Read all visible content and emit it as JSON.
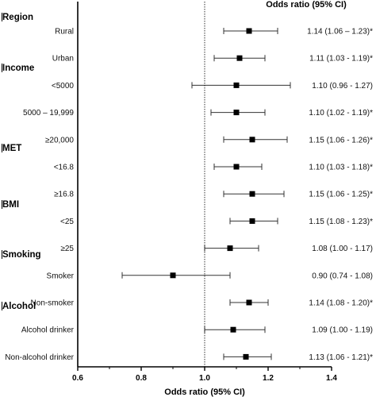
{
  "chart_data": {
    "type": "forest",
    "column_header": "Odds ratio (95% CI)",
    "xlabel": "Odds ratio (95% CI)",
    "xlim": [
      0.6,
      1.4
    ],
    "x_ticks": [
      "0.6",
      "0.8",
      "1.0",
      "1.2",
      "1.4"
    ],
    "reference_line": 1.0,
    "groups": [
      {
        "label": "Region",
        "rows": [
          {
            "label": "Rural",
            "or": 1.14,
            "lo": 1.06,
            "hi": 1.23,
            "text": "1.14 (1.06 – 1.23)*"
          },
          {
            "label": "Urban",
            "or": 1.11,
            "lo": 1.03,
            "hi": 1.19,
            "text": "1.11 (1.03 - 1.19)*"
          }
        ]
      },
      {
        "label": "Income",
        "rows": [
          {
            "label": "<5000",
            "or": 1.1,
            "lo": 0.96,
            "hi": 1.27,
            "text": "1.10 (0.96 - 1.27)"
          },
          {
            "label": "5000 – 19,999",
            "or": 1.1,
            "lo": 1.02,
            "hi": 1.19,
            "text": "1.10 (1.02 - 1.19)*"
          },
          {
            "label": "≥20,000",
            "or": 1.15,
            "lo": 1.06,
            "hi": 1.26,
            "text": "1.15 (1.06 - 1.26)*"
          }
        ]
      },
      {
        "label": "MET",
        "rows": [
          {
            "label": "<16.8",
            "or": 1.1,
            "lo": 1.03,
            "hi": 1.18,
            "text": "1.10 (1.03 - 1.18)*"
          },
          {
            "label": "≥16.8",
            "or": 1.15,
            "lo": 1.06,
            "hi": 1.25,
            "text": "1.15 (1.06 - 1.25)*"
          }
        ]
      },
      {
        "label": "BMI",
        "rows": [
          {
            "label": "<25",
            "or": 1.15,
            "lo": 1.08,
            "hi": 1.23,
            "text": "1.15 (1.08 - 1.23)*"
          },
          {
            "label": "≥25",
            "or": 1.08,
            "lo": 1.0,
            "hi": 1.17,
            "text": "1.08 (1.00 - 1.17)"
          }
        ]
      },
      {
        "label": "Smoking",
        "rows": [
          {
            "label": "Smoker",
            "or": 0.9,
            "lo": 0.74,
            "hi": 1.08,
            "text": "0.90 (0.74 - 1.08)"
          },
          {
            "label": "Non-smoker",
            "or": 1.14,
            "lo": 1.08,
            "hi": 1.2,
            "text": "1.14 (1.08 - 1.20)*"
          }
        ]
      },
      {
        "label": "Alcohol",
        "rows": [
          {
            "label": "Alcohol drinker",
            "or": 1.09,
            "lo": 1.0,
            "hi": 1.19,
            "text": "1.09 (1.00 - 1.19)"
          },
          {
            "label": "Non-alcohol drinker",
            "or": 1.13,
            "lo": 1.06,
            "hi": 1.21,
            "text": "1.13 (1.06 - 1.21)*"
          }
        ]
      }
    ]
  }
}
